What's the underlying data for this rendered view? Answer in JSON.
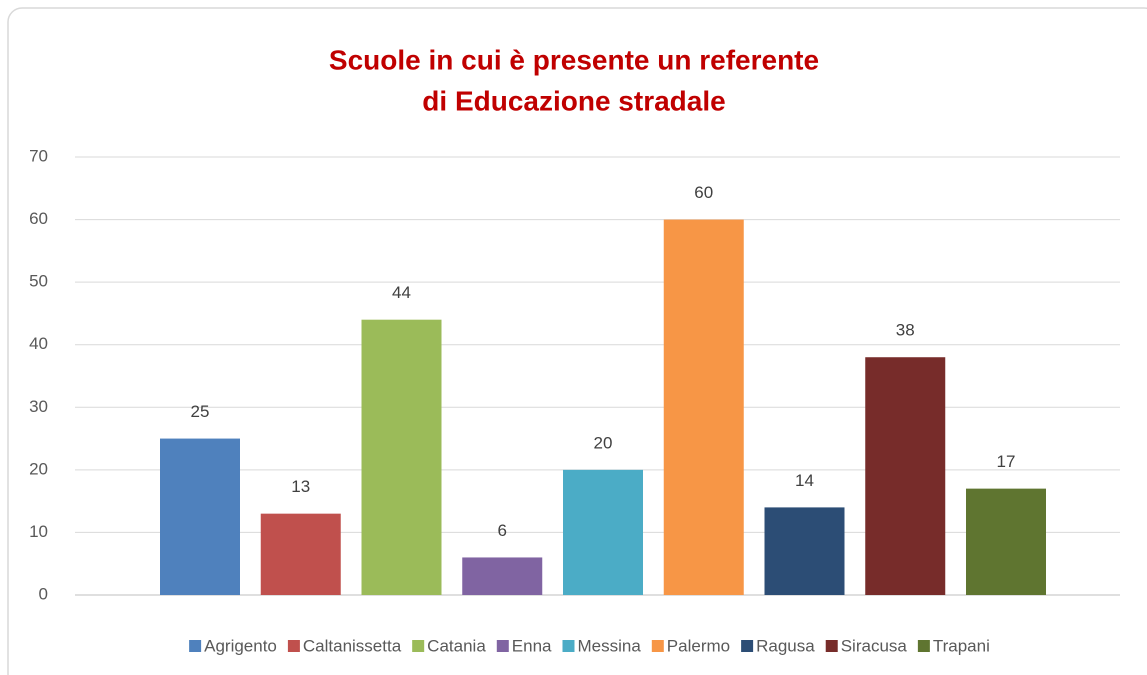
{
  "chart_data": {
    "type": "bar",
    "title": [
      "Scuole in cui è presente un referente",
      "di Educazione stradale"
    ],
    "series": [
      {
        "name": "Agrigento",
        "color": "#4f81bd",
        "values": [
          25
        ]
      },
      {
        "name": "Caltanissetta",
        "color": "#c0504d",
        "values": [
          13
        ]
      },
      {
        "name": "Catania",
        "color": "#9bbb59",
        "values": [
          44
        ]
      },
      {
        "name": "Enna",
        "color": "#8064a2",
        "values": [
          6
        ]
      },
      {
        "name": "Messina",
        "color": "#4bacc6",
        "values": [
          20
        ]
      },
      {
        "name": "Palermo",
        "color": "#f79646",
        "values": [
          60
        ]
      },
      {
        "name": "Ragusa",
        "color": "#2c4d75",
        "values": [
          14
        ]
      },
      {
        "name": "Siracusa",
        "color": "#772c2a",
        "values": [
          38
        ]
      },
      {
        "name": "Trapani",
        "color": "#5f7530",
        "values": [
          17
        ]
      }
    ],
    "ylim": [
      0,
      70
    ],
    "yticks": [
      0,
      10,
      20,
      30,
      40,
      50,
      60,
      70
    ],
    "grid": true,
    "legend": "bottom"
  }
}
